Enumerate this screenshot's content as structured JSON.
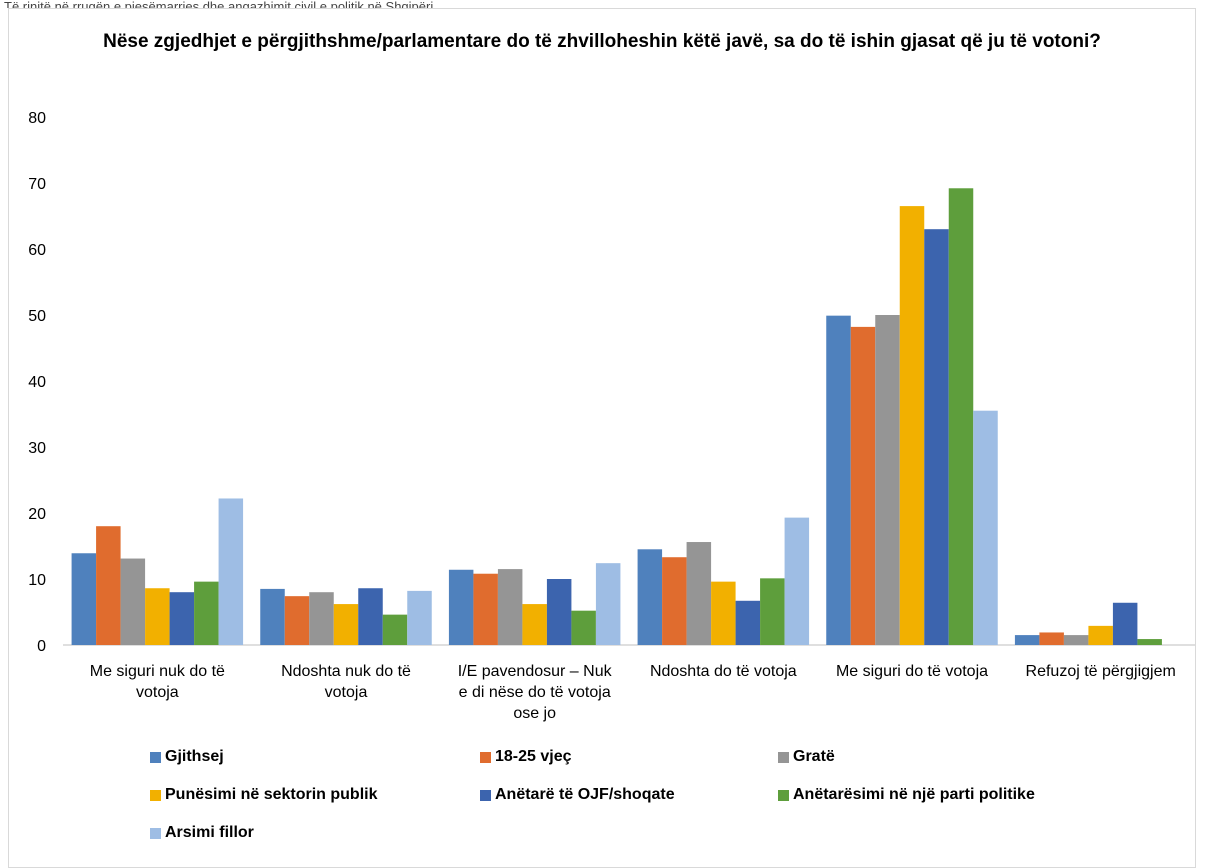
{
  "caption": "Të rinjtë në rrugën e pjesëmarrjes dhe angazhimit civil e politik në Shqipëri",
  "chart_data": {
    "type": "bar",
    "title": "Nëse zgjedhjet e përgjithshme/parlamentare do të zhvilloheshin këtë javë, sa do të ishin gjasat që ju të votoni?",
    "categories": [
      "Me siguri nuk do të votoja",
      "Ndoshta nuk do të votoja",
      "I/E pavendosur – Nuk e di nëse do të votoja ose jo",
      "Ndoshta do të votoja",
      "Me siguri do të votoja",
      "Refuzoj të përgjigjem"
    ],
    "category_lines": [
      [
        "Me siguri nuk do të",
        "votoja"
      ],
      [
        "Ndoshta nuk do të",
        "votoja"
      ],
      [
        "I/E pavendosur – Nuk",
        "e di nëse do të votoja",
        "ose jo"
      ],
      [
        "Ndoshta do të votoja"
      ],
      [
        "Me siguri do të votoja"
      ],
      [
        "Refuzoj të përgjigjem"
      ]
    ],
    "ylim": [
      0,
      80
    ],
    "yticks": [
      "0",
      "10",
      "20",
      "30",
      "40",
      "50",
      "60",
      "70",
      "80"
    ],
    "grid": false,
    "legend_position": "bottom",
    "series": [
      {
        "name": "Gjithsej",
        "color": "#4f81bd",
        "values": [
          13.9,
          8.5,
          11.4,
          14.5,
          49.9,
          1.5
        ]
      },
      {
        "name": "18-25 vjeç",
        "color": "#e06c2e",
        "values": [
          18.0,
          7.4,
          10.8,
          13.3,
          48.2,
          1.9
        ]
      },
      {
        "name": "Gratë",
        "color": "#959595",
        "values": [
          13.1,
          8.0,
          11.5,
          15.6,
          50.0,
          1.5
        ]
      },
      {
        "name": "Punësimi në sektorin publik",
        "color": "#f2b000",
        "values": [
          8.6,
          6.2,
          6.2,
          9.6,
          66.5,
          2.9
        ]
      },
      {
        "name": "Anëtarë të OJF/shoqate",
        "color": "#3c64ae",
        "values": [
          8.0,
          8.6,
          10.0,
          6.7,
          63.0,
          6.4
        ]
      },
      {
        "name": "Anëtarësimi në një parti politike",
        "color": "#5e9e3c",
        "values": [
          9.6,
          4.6,
          5.2,
          10.1,
          69.2,
          0.9
        ]
      },
      {
        "name": "Arsimi fillor",
        "color": "#9ebde4",
        "values": [
          22.2,
          8.2,
          12.4,
          19.3,
          35.5,
          0
        ]
      }
    ]
  }
}
